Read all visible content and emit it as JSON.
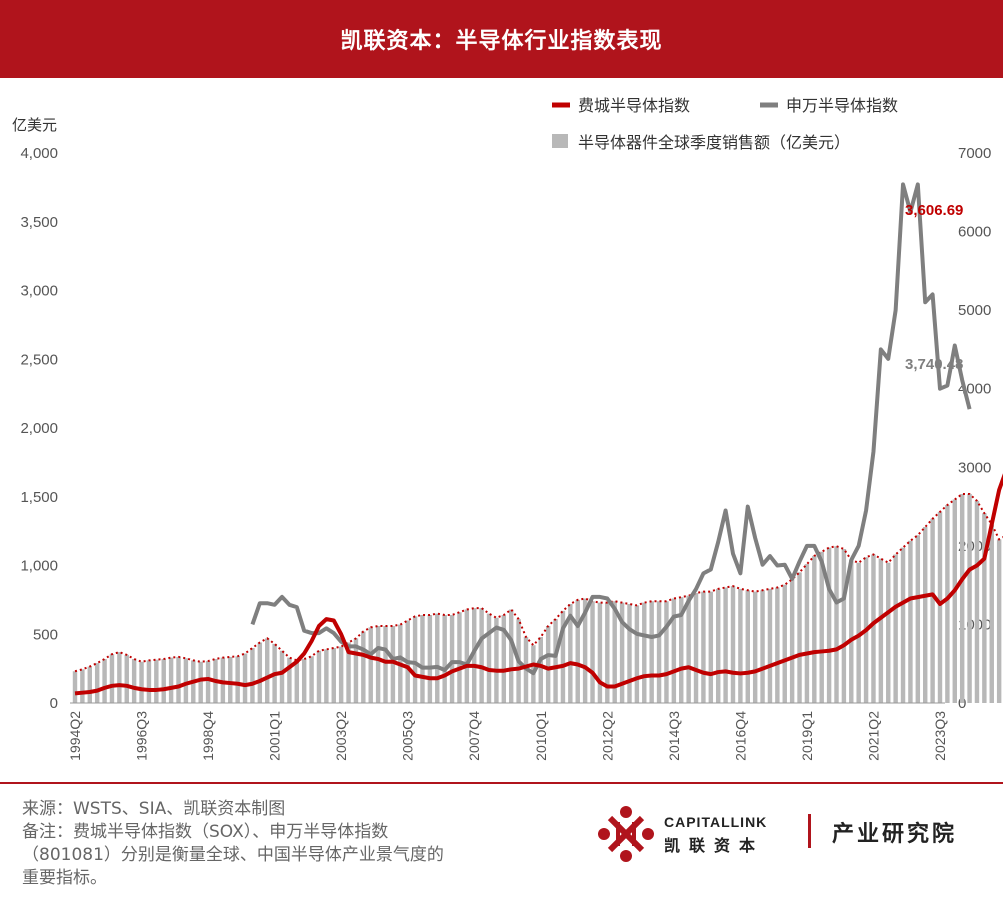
{
  "header": {
    "title": "凯联资本：半导体行业指数表现"
  },
  "notes": {
    "source": "来源：WSTS、SIA、凯联资本制图",
    "remark_1": "备注：费城半导体指数（SOX）、申万半导体指数",
    "remark_2": "（801081）分别是衡量全球、中国半导体产业景气度的",
    "remark_3": "重要指标。"
  },
  "brand": {
    "en": "CAPITALLINK",
    "cn": "凯联资本",
    "institute": "产业研究院"
  },
  "colors": {
    "header_bg": "#b0141c",
    "sox": "#c00000",
    "sw": "#7f7f7f",
    "bars": "#b8b8b8"
  },
  "chart_data": {
    "type": "bar",
    "left_axis_unit": "亿美元",
    "ylim_left": [
      0,
      4000
    ],
    "yticks_left": [
      "0",
      "500",
      "1,000",
      "1,500",
      "2,000",
      "2,500",
      "3,000",
      "3,500",
      "4,000"
    ],
    "ylim_right": [
      0,
      7000
    ],
    "yticks_right": [
      "0",
      "1000",
      "2000",
      "3000",
      "4000",
      "5000",
      "6000",
      "7000"
    ],
    "x_start": "1994Q2",
    "x_end": "2023Q3",
    "x_tick_labels": [
      "1994Q2",
      "1996Q3",
      "1998Q4",
      "2001Q1",
      "2003Q2",
      "2005Q3",
      "2007Q4",
      "2010Q1",
      "2012Q2",
      "2014Q3",
      "2016Q4",
      "2019Q1",
      "2021Q2",
      "2023Q3"
    ],
    "legend": {
      "position": "top-right",
      "sox": "费城半导体指数",
      "sw": "申万半导体指数",
      "sales": "半导体器件全球季度销售额（亿美元）"
    },
    "series": [
      {
        "key": "sales",
        "axis": "left",
        "chart": "bar+dotted-line",
        "values": [
          231,
          245,
          265,
          290,
          320,
          355,
          370,
          350,
          320,
          300,
          310,
          315,
          320,
          330,
          335,
          325,
          310,
          300,
          305,
          320,
          330,
          335,
          340,
          360,
          400,
          440,
          470,
          430,
          380,
          330,
          310,
          320,
          340,
          380,
          390,
          400,
          410,
          440,
          470,
          520,
          550,
          560,
          560,
          560,
          570,
          600,
          630,
          640,
          640,
          650,
          640,
          640,
          660,
          680,
          690,
          690,
          650,
          620,
          640,
          680,
          610,
          480,
          420,
          480,
          560,
          610,
          670,
          720,
          750,
          760,
          740,
          730,
          730,
          740,
          730,
          720,
          710,
          730,
          740,
          740,
          740,
          760,
          770,
          780,
          800,
          810,
          810,
          830,
          840,
          850,
          830,
          820,
          810,
          820,
          830,
          840,
          860,
          900,
          950,
          1010,
          1070,
          1100,
          1130,
          1140,
          1120,
          1040,
          1020,
          1060,
          1080,
          1050,
          1020,
          1080,
          1130,
          1180,
          1220,
          1280,
          1340,
          1390,
          1440,
          1480,
          1520,
          1520,
          1470,
          1380,
          1300,
          1190,
          1220,
          1310
        ]
      },
      {
        "key": "sw",
        "axis": "right",
        "chart": "line",
        "start": "2000Q2",
        "values": [
          1000,
          1270,
          1270,
          1250,
          1350,
          1250,
          1220,
          920,
          890,
          890,
          950,
          890,
          780,
          720,
          720,
          680,
          620,
          700,
          680,
          560,
          580,
          520,
          510,
          450,
          450,
          460,
          420,
          520,
          520,
          490,
          660,
          820,
          890,
          960,
          930,
          800,
          530,
          440,
          380,
          560,
          610,
          600,
          950,
          1110,
          980,
          1150,
          1350,
          1350,
          1330,
          1200,
          1030,
          940,
          880,
          860,
          840,
          860,
          970,
          1100,
          1120,
          1300,
          1450,
          1650,
          1700,
          2050,
          2450,
          1900,
          1650,
          2500,
          2100,
          1760,
          1870,
          1750,
          1760,
          1580,
          1800,
          2000,
          2000,
          1800,
          1450,
          1280,
          1330,
          1820,
          2000,
          2450,
          3200,
          4500,
          4380,
          5000,
          6600,
          6250,
          6600,
          5100,
          5200,
          4000,
          4040,
          4550,
          4110,
          3740.48
        ]
      },
      {
        "key": "sox",
        "axis": "left",
        "chart": "line",
        "values": [
          70,
          75,
          80,
          90,
          110,
          125,
          130,
          125,
          110,
          100,
          95,
          95,
          100,
          110,
          120,
          140,
          155,
          170,
          175,
          160,
          150,
          145,
          140,
          130,
          140,
          160,
          185,
          210,
          220,
          260,
          300,
          360,
          450,
          560,
          610,
          600,
          500,
          370,
          360,
          350,
          330,
          320,
          300,
          300,
          280,
          260,
          200,
          190,
          180,
          180,
          200,
          230,
          250,
          270,
          270,
          260,
          240,
          235,
          235,
          245,
          250,
          265,
          280,
          270,
          250,
          260,
          270,
          290,
          280,
          260,
          220,
          150,
          120,
          120,
          140,
          160,
          180,
          195,
          200,
          200,
          210,
          230,
          250,
          260,
          240,
          220,
          210,
          225,
          230,
          220,
          215,
          220,
          230,
          250,
          270,
          290,
          310,
          330,
          350,
          360,
          370,
          375,
          380,
          390,
          420,
          460,
          490,
          530,
          580,
          620,
          660,
          700,
          730,
          760,
          770,
          780,
          790,
          720,
          760,
          820,
          900,
          970,
          1000,
          1050,
          1300,
          1550,
          1700,
          1750,
          1800,
          2000,
          2100,
          2050,
          1650,
          1550,
          1450,
          1850,
          2100,
          2600,
          3606.69
        ]
      }
    ],
    "annotations": [
      {
        "series": "sw",
        "text": "3,740.48"
      },
      {
        "series": "sox",
        "text": "3,606.69"
      }
    ]
  }
}
